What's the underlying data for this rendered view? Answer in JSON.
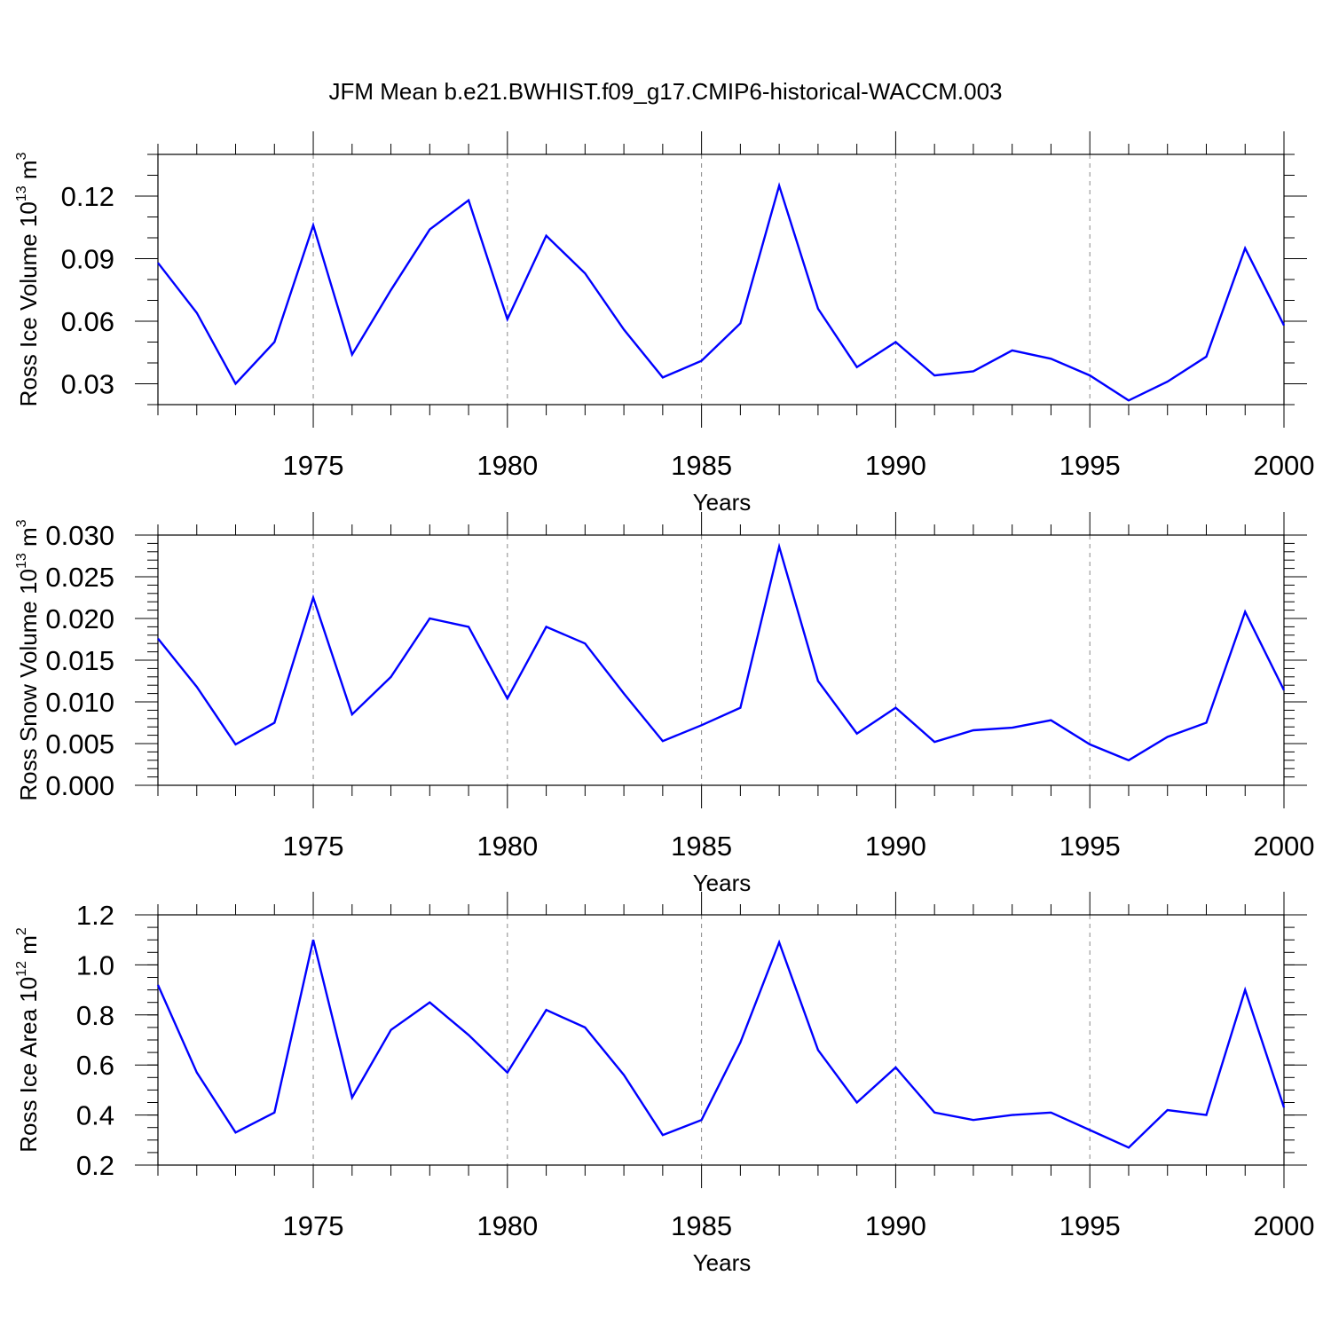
{
  "title": "JFM Mean b.e21.BWHIST.f09_g17.CMIP6-historical-WACCM.003",
  "line_color": "#0000ff",
  "chart_data": [
    {
      "type": "line",
      "ylabel": "Ross Ice Volume 10",
      "ylabel_exp": "13",
      "ylabel_unit": " m",
      "ylabel_unit_exp": "3",
      "xlabel": "Years",
      "xlim": [
        1971,
        2000
      ],
      "ylim": [
        0.02,
        0.14
      ],
      "yticks": [
        0.03,
        0.06,
        0.09,
        0.12
      ],
      "ytick_labels": [
        "0.03",
        "0.06",
        "0.09",
        "0.12"
      ],
      "xticks": [
        1975,
        1980,
        1985,
        1990,
        1995,
        2000
      ],
      "xtick_labels": [
        "1975",
        "1980",
        "1985",
        "1990",
        "1995",
        "2000"
      ],
      "x": [
        1971,
        1972,
        1973,
        1974,
        1975,
        1976,
        1977,
        1978,
        1979,
        1980,
        1981,
        1982,
        1983,
        1984,
        1985,
        1986,
        1987,
        1988,
        1989,
        1990,
        1991,
        1992,
        1993,
        1994,
        1995,
        1996,
        1997,
        1998,
        1999,
        2000
      ],
      "series": [
        {
          "values": [
            0.088,
            0.064,
            0.03,
            0.05,
            0.106,
            0.044,
            0.075,
            0.104,
            0.118,
            0.061,
            0.101,
            0.083,
            0.056,
            0.033,
            0.041,
            0.059,
            0.125,
            0.066,
            0.038,
            0.05,
            0.034,
            0.036,
            0.046,
            0.042,
            0.034,
            0.022,
            0.031,
            0.043,
            0.095,
            0.058
          ]
        }
      ]
    },
    {
      "type": "line",
      "ylabel": "Ross Snow Volume 10",
      "ylabel_exp": "13",
      "ylabel_unit": " m",
      "ylabel_unit_exp": "3",
      "xlabel": "Years",
      "xlim": [
        1971,
        2000
      ],
      "ylim": [
        0.0,
        0.03
      ],
      "yticks": [
        0.0,
        0.005,
        0.01,
        0.015,
        0.02,
        0.025,
        0.03
      ],
      "ytick_labels": [
        "0.000",
        "0.005",
        "0.010",
        "0.015",
        "0.020",
        "0.025",
        "0.030"
      ],
      "xticks": [
        1975,
        1980,
        1985,
        1990,
        1995,
        2000
      ],
      "xtick_labels": [
        "1975",
        "1980",
        "1985",
        "1990",
        "1995",
        "2000"
      ],
      "x": [
        1971,
        1972,
        1973,
        1974,
        1975,
        1976,
        1977,
        1978,
        1979,
        1980,
        1981,
        1982,
        1983,
        1984,
        1985,
        1986,
        1987,
        1988,
        1989,
        1990,
        1991,
        1992,
        1993,
        1994,
        1995,
        1996,
        1997,
        1998,
        1999,
        2000
      ],
      "series": [
        {
          "values": [
            0.0176,
            0.0118,
            0.0049,
            0.0075,
            0.0225,
            0.0085,
            0.013,
            0.02,
            0.019,
            0.0104,
            0.019,
            0.017,
            0.011,
            0.0053,
            0.0072,
            0.0093,
            0.0286,
            0.0125,
            0.0062,
            0.0093,
            0.0052,
            0.0066,
            0.0069,
            0.0078,
            0.0049,
            0.003,
            0.0058,
            0.0075,
            0.0208,
            0.0114
          ]
        }
      ]
    },
    {
      "type": "line",
      "ylabel": "Ross Ice Area 10",
      "ylabel_exp": "12",
      "ylabel_unit": " m",
      "ylabel_unit_exp": "2",
      "xlabel": "Years",
      "xlim": [
        1971,
        2000
      ],
      "ylim": [
        0.2,
        1.2
      ],
      "yticks": [
        0.2,
        0.4,
        0.6,
        0.8,
        1.0,
        1.2
      ],
      "ytick_labels": [
        "0.2",
        "0.4",
        "0.6",
        "0.8",
        "1.0",
        "1.2"
      ],
      "xticks": [
        1975,
        1980,
        1985,
        1990,
        1995,
        2000
      ],
      "xtick_labels": [
        "1975",
        "1980",
        "1985",
        "1990",
        "1995",
        "2000"
      ],
      "x": [
        1971,
        1972,
        1973,
        1974,
        1975,
        1976,
        1977,
        1978,
        1979,
        1980,
        1981,
        1982,
        1983,
        1984,
        1985,
        1986,
        1987,
        1988,
        1989,
        1990,
        1991,
        1992,
        1993,
        1994,
        1995,
        1996,
        1997,
        1998,
        1999,
        2000
      ],
      "series": [
        {
          "values": [
            0.92,
            0.57,
            0.33,
            0.41,
            1.1,
            0.47,
            0.74,
            0.85,
            0.72,
            0.57,
            0.82,
            0.75,
            0.56,
            0.32,
            0.38,
            0.69,
            1.09,
            0.66,
            0.45,
            0.59,
            0.41,
            0.38,
            0.4,
            0.41,
            0.34,
            0.27,
            0.42,
            0.4,
            0.9,
            0.43
          ]
        }
      ]
    }
  ]
}
